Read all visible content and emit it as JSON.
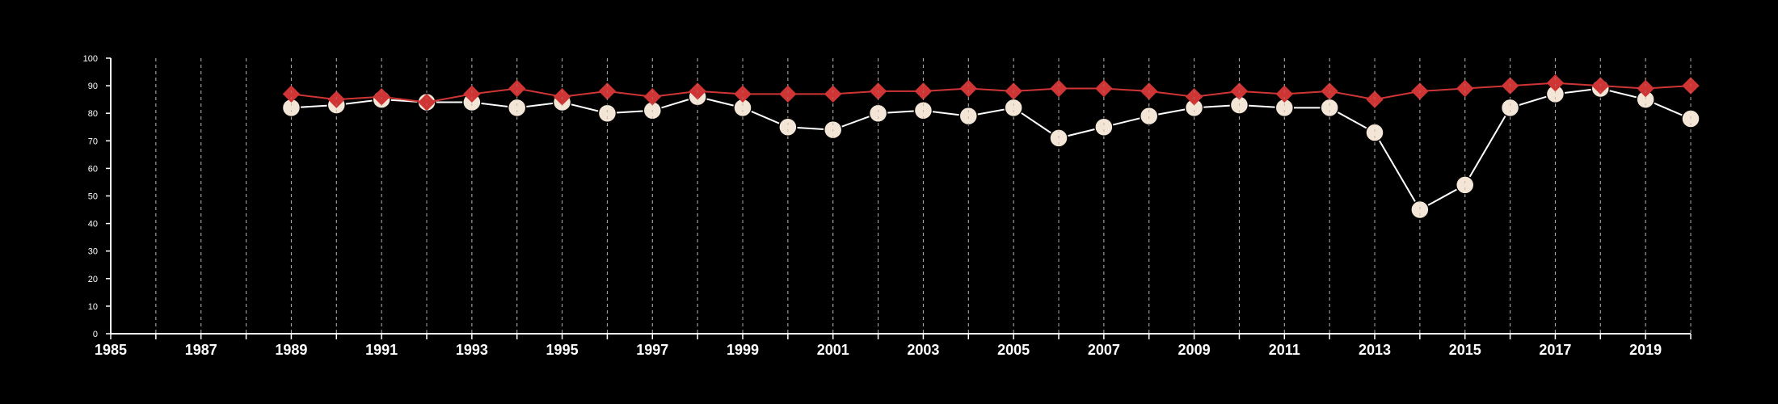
{
  "chart_data": {
    "type": "line",
    "xlim": [
      1985,
      2020
    ],
    "ylim": [
      0,
      100
    ],
    "x_ticks": [
      "1985",
      "1987",
      "1989",
      "1991",
      "1993",
      "1995",
      "1997",
      "1999",
      "2001",
      "2003",
      "2005",
      "2007",
      "2009",
      "2011",
      "2013",
      "2015",
      "2017",
      "2019"
    ],
    "y_ticks": [
      "0",
      "10",
      "20",
      "30",
      "40",
      "50",
      "60",
      "70",
      "80",
      "90",
      "100"
    ],
    "grid": "vertical dashed lines at every year",
    "legend": "none",
    "x": [
      1989,
      1990,
      1991,
      1992,
      1993,
      1994,
      1995,
      1996,
      1997,
      1998,
      1999,
      2000,
      2001,
      2002,
      2003,
      2004,
      2005,
      2006,
      2007,
      2008,
      2009,
      2010,
      2011,
      2012,
      2013,
      2014,
      2015,
      2016,
      2017,
      2018,
      2019,
      2020
    ],
    "series": [
      {
        "marker": "diamond",
        "color": "#d03535",
        "values": [
          87,
          85,
          86,
          84,
          87,
          89,
          86,
          88,
          86,
          88,
          87,
          87,
          87,
          88,
          88,
          89,
          88,
          89,
          89,
          88,
          86,
          88,
          87,
          88,
          85,
          88,
          89,
          90,
          91,
          90,
          89,
          90
        ]
      },
      {
        "marker": "circle",
        "color": "#f3e6d6",
        "line_color": "#ffffff",
        "values": [
          82,
          83,
          85,
          84,
          84,
          82,
          84,
          80,
          81,
          86,
          82,
          75,
          74,
          80,
          81,
          79,
          82,
          71,
          75,
          79,
          82,
          83,
          82,
          82,
          73,
          45,
          54,
          82,
          87,
          89,
          85,
          78
        ]
      }
    ]
  }
}
